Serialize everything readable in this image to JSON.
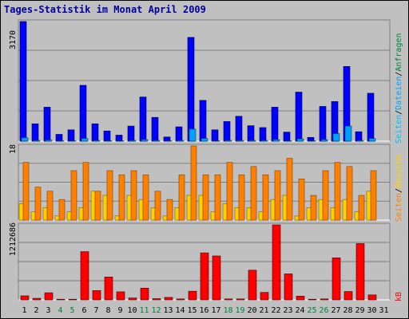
{
  "window_title": "Tages-Statistik im Monat April 2009",
  "colors": {
    "panel_bg": "#c0c0c0",
    "grid": "#808080",
    "anfragen": "#0000ff",
    "dateien": "#00a0ff",
    "seiten": "#ff8000",
    "besuche": "#ffd000",
    "kb": "#ff0000",
    "title": "#0000a0",
    "weekend_day": "#008040"
  },
  "chart_data": [
    {
      "type": "bar",
      "title": "Tages-Statistik im Monat April 2009",
      "ylabel": "3170",
      "ymax": 3170,
      "legend": [
        "Anfragen",
        "Dateien"
      ],
      "categories": [
        "1",
        "2",
        "3",
        "4",
        "5",
        "6",
        "7",
        "8",
        "9",
        "10",
        "11",
        "12",
        "13",
        "14",
        "15",
        "16",
        "17",
        "18",
        "19",
        "20",
        "21",
        "22",
        "23",
        "24",
        "25",
        "26",
        "27",
        "28",
        "29",
        "30",
        "31"
      ],
      "series": [
        {
          "name": "Anfragen",
          "values": [
            3170,
            460,
            900,
            180,
            300,
            1480,
            460,
            270,
            160,
            400,
            1170,
            630,
            110,
            380,
            2750,
            1080,
            300,
            520,
            660,
            410,
            360,
            900,
            240,
            1300,
            100,
            920,
            1050,
            1980,
            250,
            1270,
            0
          ]
        },
        {
          "name": "Dateien",
          "values": [
            90,
            20,
            30,
            10,
            10,
            70,
            20,
            10,
            10,
            20,
            40,
            20,
            10,
            20,
            320,
            70,
            10,
            20,
            20,
            20,
            20,
            40,
            10,
            60,
            10,
            40,
            200,
            400,
            20,
            70,
            0
          ]
        }
      ]
    },
    {
      "type": "bar",
      "ylabel": "18",
      "ymax": 18,
      "legend": [
        "Seiten",
        "Besuche"
      ],
      "categories": [
        "1",
        "2",
        "3",
        "4",
        "5",
        "6",
        "7",
        "8",
        "9",
        "10",
        "11",
        "12",
        "13",
        "14",
        "15",
        "16",
        "17",
        "18",
        "19",
        "20",
        "21",
        "22",
        "23",
        "24",
        "25",
        "26",
        "27",
        "28",
        "29",
        "30",
        "31"
      ],
      "series": [
        {
          "name": "Seiten",
          "values": [
            14,
            8,
            7,
            5,
            12,
            14,
            7,
            12,
            11,
            12,
            11,
            7,
            5,
            11,
            18,
            11,
            11,
            14,
            11,
            13,
            11,
            12,
            15,
            10,
            6,
            12,
            14,
            13,
            6,
            12,
            0
          ]
        },
        {
          "name": "Besuche",
          "values": [
            4,
            2,
            3,
            1,
            2,
            3,
            7,
            6,
            1,
            6,
            5,
            3,
            1,
            3,
            6,
            6,
            2,
            4,
            3,
            3,
            2,
            5,
            6,
            1,
            3,
            5,
            3,
            5,
            2,
            7,
            0
          ]
        }
      ]
    },
    {
      "type": "bar",
      "ylabel": "1212686",
      "ymax": 1212686,
      "legend": [
        "kB"
      ],
      "categories": [
        "1",
        "2",
        "3",
        "4",
        "5",
        "6",
        "7",
        "8",
        "9",
        "10",
        "11",
        "12",
        "13",
        "14",
        "15",
        "16",
        "17",
        "18",
        "19",
        "20",
        "21",
        "22",
        "23",
        "24",
        "25",
        "26",
        "27",
        "28",
        "29",
        "30",
        "31"
      ],
      "weekend_days": [
        "4",
        "5",
        "11",
        "12",
        "18",
        "19",
        "25",
        "26"
      ],
      "series": [
        {
          "name": "kB",
          "values": [
            65000,
            25000,
            115000,
            10000,
            10000,
            780000,
            150000,
            370000,
            130000,
            30000,
            190000,
            20000,
            40000,
            15000,
            140000,
            760000,
            710000,
            15000,
            15000,
            480000,
            120000,
            1212686,
            420000,
            60000,
            10000,
            15000,
            680000,
            135000,
            910000,
            80000,
            0
          ]
        }
      ]
    }
  ]
}
